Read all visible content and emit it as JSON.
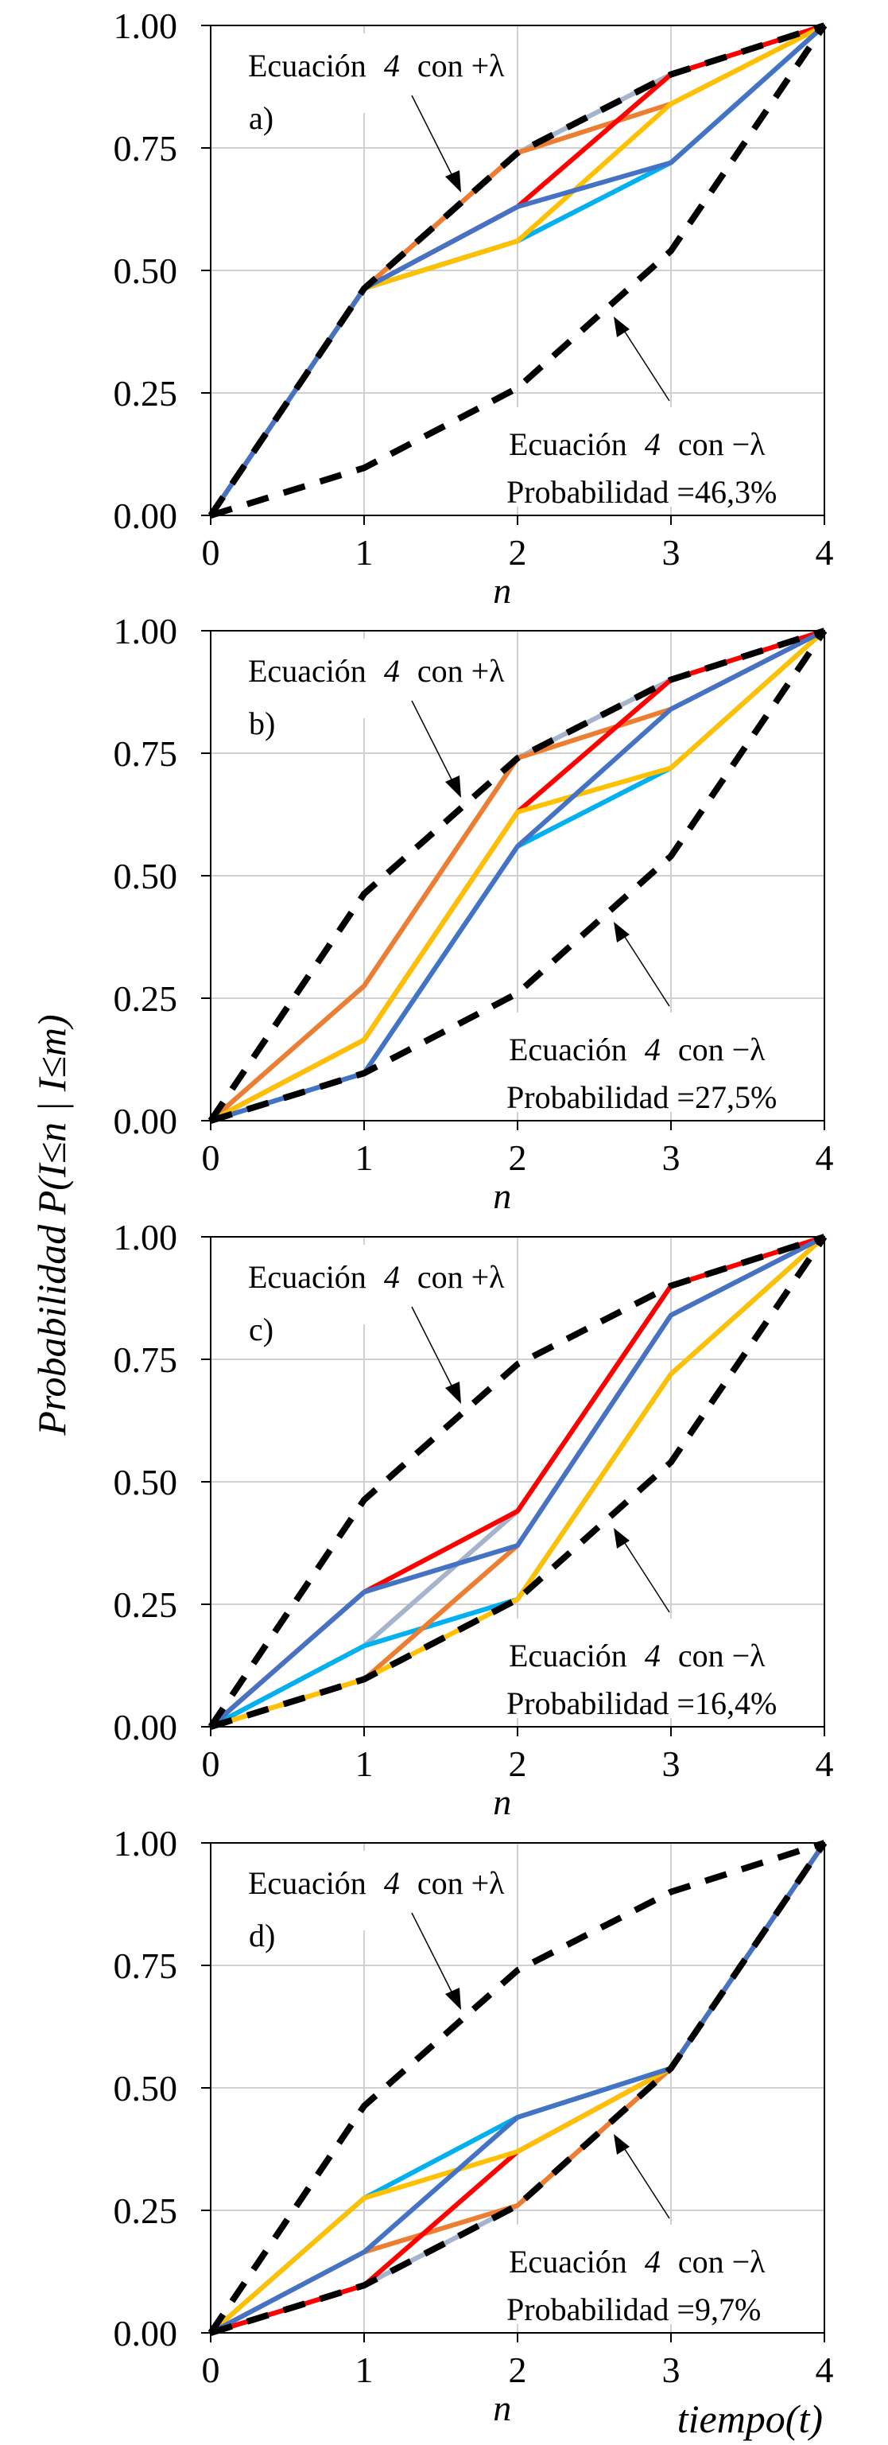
{
  "chart_data": [
    {
      "type": "line",
      "panel_label": "a)",
      "x": [
        0,
        1,
        2,
        3,
        4
      ],
      "xlabel": "n",
      "ylim": [
        0,
        1
      ],
      "xlim": [
        0,
        4
      ],
      "yticks": [
        "0.00",
        "0.25",
        "0.50",
        "0.75",
        "1.00"
      ],
      "xticks": [
        "0",
        "1",
        "2",
        "3",
        "4"
      ],
      "grid": true,
      "annotation_plus": {
        "text": "Ecuación",
        "eq": "4",
        "suffix": "con +λ"
      },
      "annotation_minus": {
        "text": "Ecuación",
        "eq": "4",
        "suffix": "con −λ"
      },
      "probability": "Probabilidad =46,3%",
      "series": [
        {
          "color": "#00B0F0",
          "values": [
            0,
            0.463,
            0.56,
            0.72,
            1
          ]
        },
        {
          "color": "#A5B4CC",
          "values": [
            0,
            0.463,
            0.74,
            0.9,
            1
          ]
        },
        {
          "color": "#ED7D31",
          "values": [
            0,
            0.463,
            0.74,
            0.84,
            1
          ]
        },
        {
          "color": "#FF0000",
          "values": [
            0,
            0.463,
            0.63,
            0.9,
            1
          ]
        },
        {
          "color": "#FFC000",
          "values": [
            0,
            0.463,
            0.56,
            0.84,
            1
          ]
        },
        {
          "color": "#4472C4",
          "values": [
            0,
            0.463,
            0.63,
            0.72,
            1
          ]
        }
      ],
      "bounds": [
        {
          "color": "#000000",
          "style": "dashed",
          "values": [
            0,
            0.463,
            0.74,
            0.9,
            1
          ]
        },
        {
          "color": "#000000",
          "style": "dashed",
          "values": [
            0,
            0.097,
            0.26,
            0.54,
            1
          ]
        }
      ]
    },
    {
      "type": "line",
      "panel_label": "b)",
      "x": [
        0,
        1,
        2,
        3,
        4
      ],
      "xlabel": "n",
      "ylim": [
        0,
        1
      ],
      "xlim": [
        0,
        4
      ],
      "yticks": [
        "0.00",
        "0.25",
        "0.50",
        "0.75",
        "1.00"
      ],
      "xticks": [
        "0",
        "1",
        "2",
        "3",
        "4"
      ],
      "grid": true,
      "annotation_plus": {
        "text": "Ecuación",
        "eq": "4",
        "suffix": "con +λ"
      },
      "annotation_minus": {
        "text": "Ecuación",
        "eq": "4",
        "suffix": "con −λ"
      },
      "probability": "Probabilidad =27,5%",
      "series": [
        {
          "color": "#00B0F0",
          "values": [
            0,
            0.097,
            0.56,
            0.72,
            1
          ]
        },
        {
          "color": "#A5B4CC",
          "values": [
            0,
            0.275,
            0.74,
            0.9,
            1
          ]
        },
        {
          "color": "#ED7D31",
          "values": [
            0,
            0.275,
            0.74,
            0.84,
            1
          ]
        },
        {
          "color": "#FF0000",
          "values": [
            0,
            0.165,
            0.63,
            0.9,
            1
          ]
        },
        {
          "color": "#FFC000",
          "values": [
            0,
            0.165,
            0.63,
            0.72,
            1
          ]
        },
        {
          "color": "#4472C4",
          "values": [
            0,
            0.097,
            0.56,
            0.84,
            1
          ]
        }
      ],
      "bounds": [
        {
          "color": "#000000",
          "style": "dashed",
          "values": [
            0,
            0.463,
            0.74,
            0.9,
            1
          ]
        },
        {
          "color": "#000000",
          "style": "dashed",
          "values": [
            0,
            0.097,
            0.26,
            0.54,
            1
          ]
        }
      ]
    },
    {
      "type": "line",
      "panel_label": "c)",
      "x": [
        0,
        1,
        2,
        3,
        4
      ],
      "xlabel": "n",
      "ylim": [
        0,
        1
      ],
      "xlim": [
        0,
        4
      ],
      "yticks": [
        "0.00",
        "0.25",
        "0.50",
        "0.75",
        "1.00"
      ],
      "xticks": [
        "0",
        "1",
        "2",
        "3",
        "4"
      ],
      "grid": true,
      "annotation_plus": {
        "text": "Ecuación",
        "eq": "4",
        "suffix": "con +λ"
      },
      "annotation_minus": {
        "text": "Ecuación",
        "eq": "4",
        "suffix": "con −λ"
      },
      "probability": "Probabilidad =16,4%",
      "series": [
        {
          "color": "#A5B4CC",
          "values": [
            0,
            0.165,
            0.44,
            0.9,
            1
          ]
        },
        {
          "color": "#00B0F0",
          "values": [
            0,
            0.165,
            0.26,
            0.72,
            1
          ]
        },
        {
          "color": "#ED7D31",
          "values": [
            0,
            0.097,
            0.37,
            0.84,
            1
          ]
        },
        {
          "color": "#FF0000",
          "values": [
            0,
            0.275,
            0.44,
            0.9,
            1
          ]
        },
        {
          "color": "#FFC000",
          "values": [
            0,
            0.097,
            0.26,
            0.72,
            1
          ]
        },
        {
          "color": "#4472C4",
          "values": [
            0,
            0.275,
            0.37,
            0.84,
            1
          ]
        }
      ],
      "bounds": [
        {
          "color": "#000000",
          "style": "dashed",
          "values": [
            0,
            0.463,
            0.74,
            0.9,
            1
          ]
        },
        {
          "color": "#000000",
          "style": "dashed",
          "values": [
            0,
            0.097,
            0.26,
            0.54,
            1
          ]
        }
      ]
    },
    {
      "type": "line",
      "panel_label": "d)",
      "x": [
        0,
        1,
        2,
        3,
        4
      ],
      "xlabel": "n",
      "ylim": [
        0,
        1
      ],
      "xlim": [
        0,
        4
      ],
      "yticks": [
        "0.00",
        "0.25",
        "0.50",
        "0.75",
        "1.00"
      ],
      "xticks": [
        "0",
        "1",
        "2",
        "3",
        "4"
      ],
      "grid": true,
      "annotation_plus": {
        "text": "Ecuación",
        "eq": "4",
        "suffix": "con +λ"
      },
      "annotation_minus": {
        "text": "Ecuación",
        "eq": "4",
        "suffix": "con −λ"
      },
      "probability": "Probabilidad =9,7%",
      "series": [
        {
          "color": "#A5B4CC",
          "values": [
            0,
            0.097,
            0.26,
            0.54,
            1
          ]
        },
        {
          "color": "#00B0F0",
          "values": [
            0,
            0.275,
            0.44,
            0.54,
            1
          ]
        },
        {
          "color": "#ED7D31",
          "values": [
            0,
            0.165,
            0.26,
            0.54,
            1
          ]
        },
        {
          "color": "#FF0000",
          "values": [
            0,
            0.097,
            0.37,
            0.54,
            1
          ]
        },
        {
          "color": "#FFC000",
          "values": [
            0,
            0.275,
            0.37,
            0.54,
            1
          ]
        },
        {
          "color": "#4472C4",
          "values": [
            0,
            0.165,
            0.44,
            0.54,
            1
          ]
        }
      ],
      "bounds": [
        {
          "color": "#000000",
          "style": "dashed",
          "values": [
            0,
            0.463,
            0.74,
            0.9,
            1
          ]
        },
        {
          "color": "#000000",
          "style": "dashed",
          "values": [
            0,
            0.097,
            0.26,
            0.54,
            1
          ]
        }
      ]
    }
  ],
  "shared": {
    "ylabel": "Probabilidad  P(I≤n | I≤m)",
    "time_label": "tiempo(t)"
  }
}
